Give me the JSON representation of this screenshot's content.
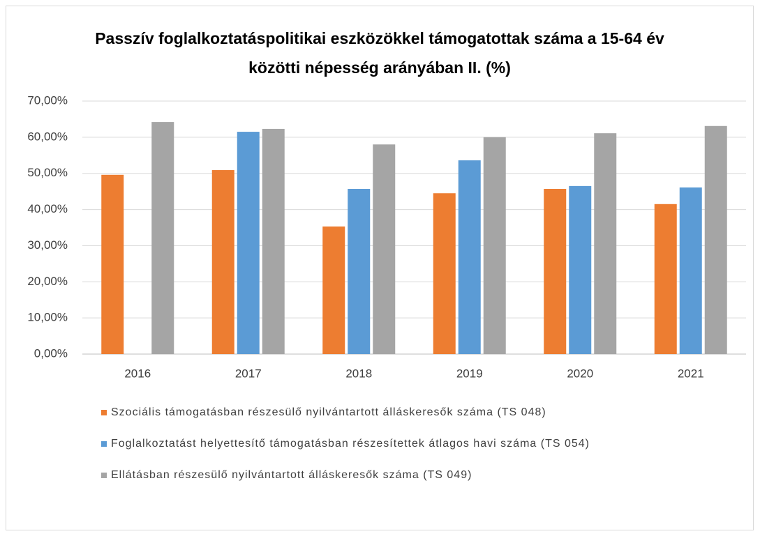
{
  "chart_data": {
    "type": "bar",
    "title": "Passzív foglalkoztatáspolitikai eszközökkel támogatottak száma a 15-64 év közötti népesség arányában II. (%)",
    "categories": [
      "2016",
      "2017",
      "2018",
      "2019",
      "2020",
      "2021"
    ],
    "series": [
      {
        "name": "Szociális támogatásban részesülő nyilvántartott álláskeresők száma (TS 048)",
        "color": "#ed7d31",
        "values": [
          49.6,
          50.9,
          35.3,
          44.5,
          45.7,
          41.5
        ]
      },
      {
        "name": "Foglalkoztatást helyettesítő támogatásban részesítettek átlagos havi száma (TS 054)",
        "color": "#5b9bd5",
        "values": [
          null,
          61.5,
          45.7,
          53.6,
          46.5,
          46.1
        ]
      },
      {
        "name": "Ellátásban részesülő nyilvántartott álláskeresők száma (TS 049)",
        "color": "#a5a5a5",
        "values": [
          64.2,
          62.3,
          58.0,
          60.0,
          61.1,
          63.1
        ]
      }
    ],
    "ylim": [
      0,
      70
    ],
    "yticks": [
      {
        "value": 0,
        "label": "0,00%"
      },
      {
        "value": 10,
        "label": "10,00%"
      },
      {
        "value": 20,
        "label": "20,00%"
      },
      {
        "value": 30,
        "label": "30,00%"
      },
      {
        "value": 40,
        "label": "40,00%"
      },
      {
        "value": 50,
        "label": "50,00%"
      },
      {
        "value": 60,
        "label": "60,00%"
      },
      {
        "value": 70,
        "label": "70,00%"
      }
    ],
    "grid": true
  }
}
